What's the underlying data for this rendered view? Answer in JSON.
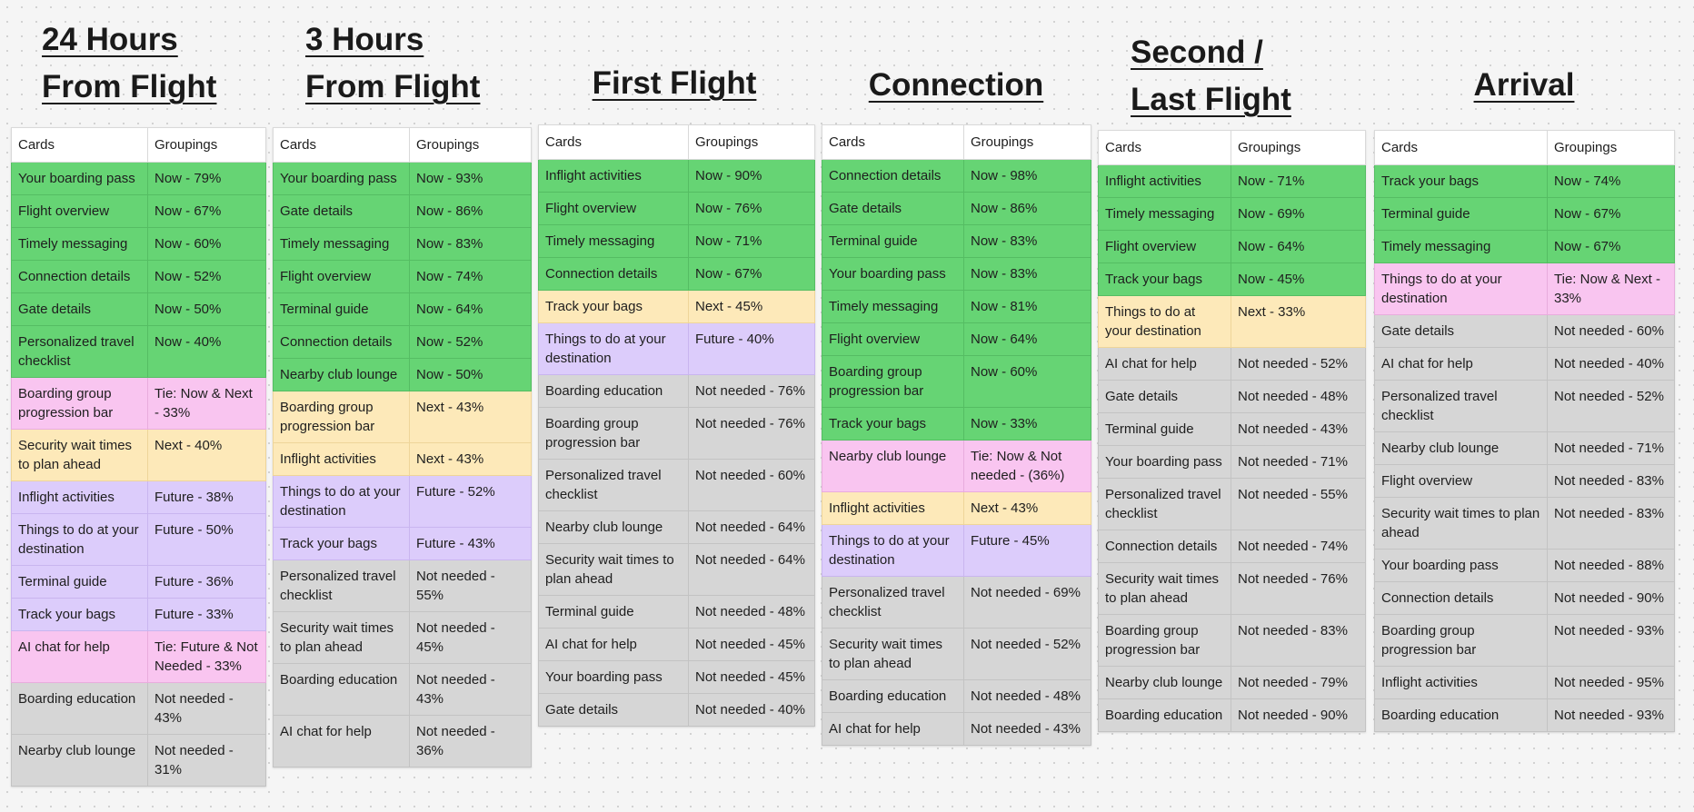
{
  "headers": {
    "cards": "Cards",
    "groupings": "Groupings"
  },
  "columns": [
    {
      "title_lines": [
        "24 Hours",
        "From Flight"
      ],
      "rows": [
        {
          "card": "Your boarding pass",
          "group": "Now - 79%",
          "status": "now"
        },
        {
          "card": "Flight overview",
          "group": "Now - 67%",
          "status": "now"
        },
        {
          "card": "Timely messaging",
          "group": "Now - 60%",
          "status": "now"
        },
        {
          "card": "Connection details",
          "group": "Now - 52%",
          "status": "now"
        },
        {
          "card": "Gate details",
          "group": "Now - 50%",
          "status": "now"
        },
        {
          "card": "Personalized travel checklist",
          "group": "Now - 40%",
          "status": "now"
        },
        {
          "card": "Boarding group progression bar",
          "group": "Tie: Now & Next - 33%",
          "status": "tie"
        },
        {
          "card": "Security wait times to plan ahead",
          "group": "Next - 40%",
          "status": "next"
        },
        {
          "card": "Inflight activities",
          "group": "Future - 38%",
          "status": "future"
        },
        {
          "card": "Things to do at your destination",
          "group": "Future - 50%",
          "status": "future"
        },
        {
          "card": "Terminal guide",
          "group": "Future - 36%",
          "status": "future"
        },
        {
          "card": "Track your bags",
          "group": "Future - 33%",
          "status": "future"
        },
        {
          "card": "AI chat for help",
          "group": "Tie: Future & Not Needed - 33%",
          "status": "tie"
        },
        {
          "card": "Boarding education",
          "group": "Not needed - 43%",
          "status": "nn"
        },
        {
          "card": "Nearby club lounge",
          "group": "Not needed - 31%",
          "status": "nn"
        }
      ]
    },
    {
      "title_lines": [
        "3 Hours",
        "From Flight"
      ],
      "rows": [
        {
          "card": "Your boarding pass",
          "group": "Now - 93%",
          "status": "now"
        },
        {
          "card": "Gate details",
          "group": "Now - 86%",
          "status": "now"
        },
        {
          "card": "Timely messaging",
          "group": "Now - 83%",
          "status": "now"
        },
        {
          "card": "Flight overview",
          "group": "Now - 74%",
          "status": "now"
        },
        {
          "card": "Terminal guide",
          "group": "Now - 64%",
          "status": "now"
        },
        {
          "card": "Connection details",
          "group": "Now - 52%",
          "status": "now"
        },
        {
          "card": "Nearby club lounge",
          "group": "Now - 50%",
          "status": "now"
        },
        {
          "card": "Boarding group progression bar",
          "group": "Next - 43%",
          "status": "next"
        },
        {
          "card": "Inflight activities",
          "group": "Next - 43%",
          "status": "next"
        },
        {
          "card": "Things to do at your destination",
          "group": "Future - 52%",
          "status": "future"
        },
        {
          "card": "Track your bags",
          "group": "Future - 43%",
          "status": "future"
        },
        {
          "card": "Personalized travel checklist",
          "group": "Not needed - 55%",
          "status": "nn"
        },
        {
          "card": "Security wait times to plan ahead",
          "group": "Not needed - 45%",
          "status": "nn"
        },
        {
          "card": "Boarding education",
          "group": "Not needed - 43%",
          "status": "nn"
        },
        {
          "card": "AI chat for help",
          "group": "Not needed - 36%",
          "status": "nn"
        }
      ]
    },
    {
      "title_lines": [
        "First Flight"
      ],
      "rows": [
        {
          "card": "Inflight activities",
          "group": "Now - 90%",
          "status": "now"
        },
        {
          "card": "Flight overview",
          "group": "Now - 76%",
          "status": "now"
        },
        {
          "card": "Timely messaging",
          "group": "Now - 71%",
          "status": "now"
        },
        {
          "card": "Connection details",
          "group": "Now - 67%",
          "status": "now"
        },
        {
          "card": "Track your bags",
          "group": "Next - 45%",
          "status": "next"
        },
        {
          "card": "Things to do at your destination",
          "group": "Future - 40%",
          "status": "future"
        },
        {
          "card": "Boarding education",
          "group": "Not needed - 76%",
          "status": "nn"
        },
        {
          "card": "Boarding group progression bar",
          "group": "Not needed - 76%",
          "status": "nn"
        },
        {
          "card": "Personalized travel checklist",
          "group": "Not needed - 60%",
          "status": "nn"
        },
        {
          "card": "Nearby club lounge",
          "group": "Not needed - 64%",
          "status": "nn"
        },
        {
          "card": "Security wait times to plan ahead",
          "group": "Not needed - 64%",
          "status": "nn"
        },
        {
          "card": "Terminal guide",
          "group": "Not needed - 48%",
          "status": "nn"
        },
        {
          "card": "AI chat for help",
          "group": "Not needed - 45%",
          "status": "nn"
        },
        {
          "card": "Your boarding pass",
          "group": "Not needed - 45%",
          "status": "nn"
        },
        {
          "card": "Gate details",
          "group": "Not needed - 40%",
          "status": "nn"
        }
      ]
    },
    {
      "title_lines": [
        "Connection"
      ],
      "rows": [
        {
          "card": "Connection details",
          "group": "Now - 98%",
          "status": "now"
        },
        {
          "card": "Gate details",
          "group": "Now - 86%",
          "status": "now"
        },
        {
          "card": "Terminal guide",
          "group": "Now - 83%",
          "status": "now"
        },
        {
          "card": "Your boarding pass",
          "group": "Now - 83%",
          "status": "now"
        },
        {
          "card": "Timely messaging",
          "group": "Now - 81%",
          "status": "now"
        },
        {
          "card": "Flight overview",
          "group": "Now - 64%",
          "status": "now"
        },
        {
          "card": "Boarding group progression bar",
          "group": "Now - 60%",
          "status": "now"
        },
        {
          "card": "Track your bags",
          "group": "Now - 33%",
          "status": "now"
        },
        {
          "card": "Nearby club lounge",
          "group": "Tie: Now & Not needed - (36%)",
          "status": "tie"
        },
        {
          "card": "Inflight activities",
          "group": "Next - 43%",
          "status": "next"
        },
        {
          "card": "Things to do at your destination",
          "group": "Future - 45%",
          "status": "future"
        },
        {
          "card": "Personalized travel checklist",
          "group": "Not needed - 69%",
          "status": "nn"
        },
        {
          "card": "Security wait times to plan ahead",
          "group": "Not needed - 52%",
          "status": "nn"
        },
        {
          "card": "Boarding education",
          "group": "Not needed - 48%",
          "status": "nn"
        },
        {
          "card": "AI chat for help",
          "group": "Not needed - 43%",
          "status": "nn"
        }
      ]
    },
    {
      "title_lines": [
        "Second /",
        "Last Flight"
      ],
      "rows": [
        {
          "card": "Inflight activities",
          "group": "Now - 71%",
          "status": "now"
        },
        {
          "card": "Timely messaging",
          "group": "Now - 69%",
          "status": "now"
        },
        {
          "card": "Flight overview",
          "group": "Now - 64%",
          "status": "now"
        },
        {
          "card": "Track your bags",
          "group": "Now - 45%",
          "status": "now"
        },
        {
          "card": "Things to do at your destination",
          "group": "Next - 33%",
          "status": "next"
        },
        {
          "card": "AI chat for help",
          "group": "Not needed - 52%",
          "status": "nn"
        },
        {
          "card": "Gate details",
          "group": "Not needed - 48%",
          "status": "nn"
        },
        {
          "card": "Terminal guide",
          "group": "Not needed - 43%",
          "status": "nn"
        },
        {
          "card": "Your boarding pass",
          "group": "Not needed - 71%",
          "status": "nn"
        },
        {
          "card": "Personalized travel checklist",
          "group": "Not needed - 55%",
          "status": "nn"
        },
        {
          "card": "Connection details",
          "group": "Not needed - 74%",
          "status": "nn"
        },
        {
          "card": "Security wait times to plan ahead",
          "group": "Not needed - 76%",
          "status": "nn"
        },
        {
          "card": "Boarding group progression bar",
          "group": "Not needed - 83%",
          "status": "nn"
        },
        {
          "card": "Nearby club lounge",
          "group": "Not needed - 79%",
          "status": "nn"
        },
        {
          "card": "Boarding education",
          "group": "Not needed - 90%",
          "status": "nn"
        }
      ]
    },
    {
      "title_lines": [
        "Arrival"
      ],
      "rows": [
        {
          "card": "Track your bags",
          "group": "Now - 74%",
          "status": "now"
        },
        {
          "card": "Terminal guide",
          "group": "Now - 67%",
          "status": "now"
        },
        {
          "card": "Timely messaging",
          "group": "Now - 67%",
          "status": "now"
        },
        {
          "card": "Things to do at your destination",
          "group": "Tie: Now & Next - 33%",
          "status": "tie"
        },
        {
          "card": "Gate details",
          "group": "Not needed - 60%",
          "status": "nn"
        },
        {
          "card": "AI chat for help",
          "group": "Not needed - 40%",
          "status": "nn"
        },
        {
          "card": "Personalized travel checklist",
          "group": "Not needed - 52%",
          "status": "nn"
        },
        {
          "card": "Nearby club lounge",
          "group": "Not needed - 71%",
          "status": "nn"
        },
        {
          "card": "Flight overview",
          "group": "Not needed - 83%",
          "status": "nn"
        },
        {
          "card": "Security wait times to plan ahead",
          "group": "Not needed - 83%",
          "status": "nn"
        },
        {
          "card": "Your boarding pass",
          "group": "Not needed - 88%",
          "status": "nn"
        },
        {
          "card": "Connection details",
          "group": "Not needed - 90%",
          "status": "nn"
        },
        {
          "card": "Boarding group progression bar",
          "group": "Not needed - 93%",
          "status": "nn"
        },
        {
          "card": "Inflight activities",
          "group": "Not needed - 95%",
          "status": "nn"
        },
        {
          "card": "Boarding education",
          "group": "Not needed - 93%",
          "status": "nn"
        }
      ]
    }
  ],
  "colors": {
    "now": "#66d474",
    "next": "#fde9b9",
    "future": "#dcccfb",
    "tie": "#f9c5f0",
    "not_needed": "#d6d6d6"
  }
}
